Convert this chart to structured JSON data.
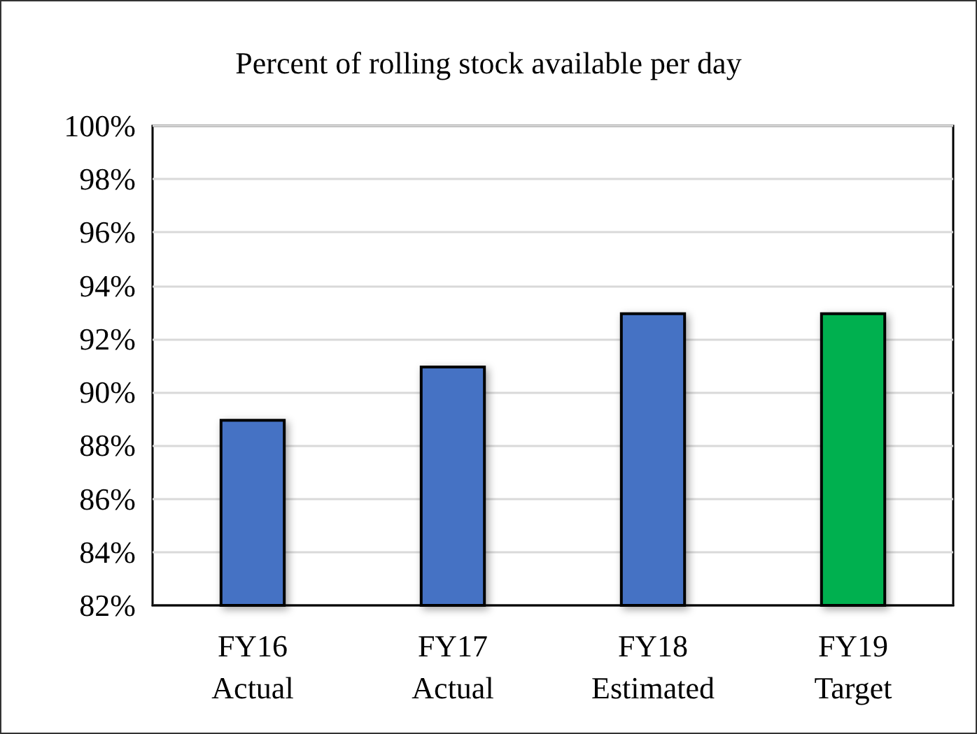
{
  "chart_data": {
    "type": "bar",
    "title": "Percent of rolling stock available per day",
    "categories": [
      "FY16\nActual",
      "FY17\nActual",
      "FY18\nEstimated",
      "FY19\nTarget"
    ],
    "values": [
      89,
      91,
      93,
      93
    ],
    "colors": [
      "#4472c4",
      "#4472c4",
      "#4472c4",
      "#00b050"
    ],
    "ylim": [
      82,
      100
    ],
    "yticks": [
      {
        "value": 82,
        "label": "82%"
      },
      {
        "value": 84,
        "label": "84%"
      },
      {
        "value": 86,
        "label": "86%"
      },
      {
        "value": 88,
        "label": "88%"
      },
      {
        "value": 90,
        "label": "90%"
      },
      {
        "value": 92,
        "label": "92%"
      },
      {
        "value": 94,
        "label": "94%"
      },
      {
        "value": 96,
        "label": "96%"
      },
      {
        "value": 98,
        "label": "98%"
      },
      {
        "value": 100,
        "label": "100%"
      }
    ],
    "grid": "y"
  }
}
